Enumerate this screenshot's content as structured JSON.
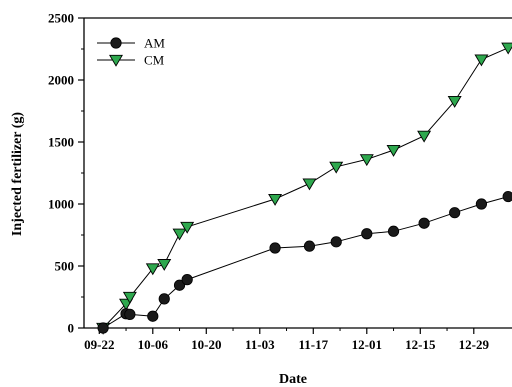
{
  "chart_data": {
    "type": "line",
    "xlabel": "Date",
    "ylabel": "Injected fertilizer (g)",
    "x_tick_labels": [
      "09-22",
      "10-06",
      "10-20",
      "11-03",
      "11-17",
      "12-01",
      "12-15",
      "12-29"
    ],
    "y_tick_labels": [
      "0",
      "500",
      "1000",
      "1500",
      "2000",
      "2500"
    ],
    "ylim": [
      0,
      2500
    ],
    "xlim": [
      "09-18",
      "01-08"
    ],
    "grid": false,
    "legend_position": "top-left",
    "series": [
      {
        "name": "AM",
        "marker": "circle",
        "color": "#1a1a1a",
        "points": [
          {
            "date": "09-23",
            "value": 0
          },
          {
            "date": "09-29",
            "value": 115
          },
          {
            "date": "09-30",
            "value": 110
          },
          {
            "date": "10-06",
            "value": 95
          },
          {
            "date": "10-09",
            "value": 235
          },
          {
            "date": "10-13",
            "value": 345
          },
          {
            "date": "10-15",
            "value": 390
          },
          {
            "date": "11-07",
            "value": 645
          },
          {
            "date": "11-16",
            "value": 660
          },
          {
            "date": "11-23",
            "value": 695
          },
          {
            "date": "12-01",
            "value": 760
          },
          {
            "date": "12-08",
            "value": 780
          },
          {
            "date": "12-16",
            "value": 845
          },
          {
            "date": "12-24",
            "value": 930
          },
          {
            "date": "12-31",
            "value": 1000
          },
          {
            "date": "01-07",
            "value": 1060
          }
        ]
      },
      {
        "name": "CM",
        "marker": "triangle-down",
        "color": "#2ea84e",
        "points": [
          {
            "date": "09-23",
            "value": 0
          },
          {
            "date": "09-29",
            "value": 195
          },
          {
            "date": "09-30",
            "value": 250
          },
          {
            "date": "10-06",
            "value": 480
          },
          {
            "date": "10-09",
            "value": 515
          },
          {
            "date": "10-13",
            "value": 760
          },
          {
            "date": "10-15",
            "value": 815
          },
          {
            "date": "11-07",
            "value": 1040
          },
          {
            "date": "11-16",
            "value": 1165
          },
          {
            "date": "11-23",
            "value": 1300
          },
          {
            "date": "12-01",
            "value": 1360
          },
          {
            "date": "12-08",
            "value": 1435
          },
          {
            "date": "12-16",
            "value": 1550
          },
          {
            "date": "12-24",
            "value": 1830
          },
          {
            "date": "12-31",
            "value": 2165
          },
          {
            "date": "01-07",
            "value": 2260
          }
        ]
      }
    ]
  }
}
